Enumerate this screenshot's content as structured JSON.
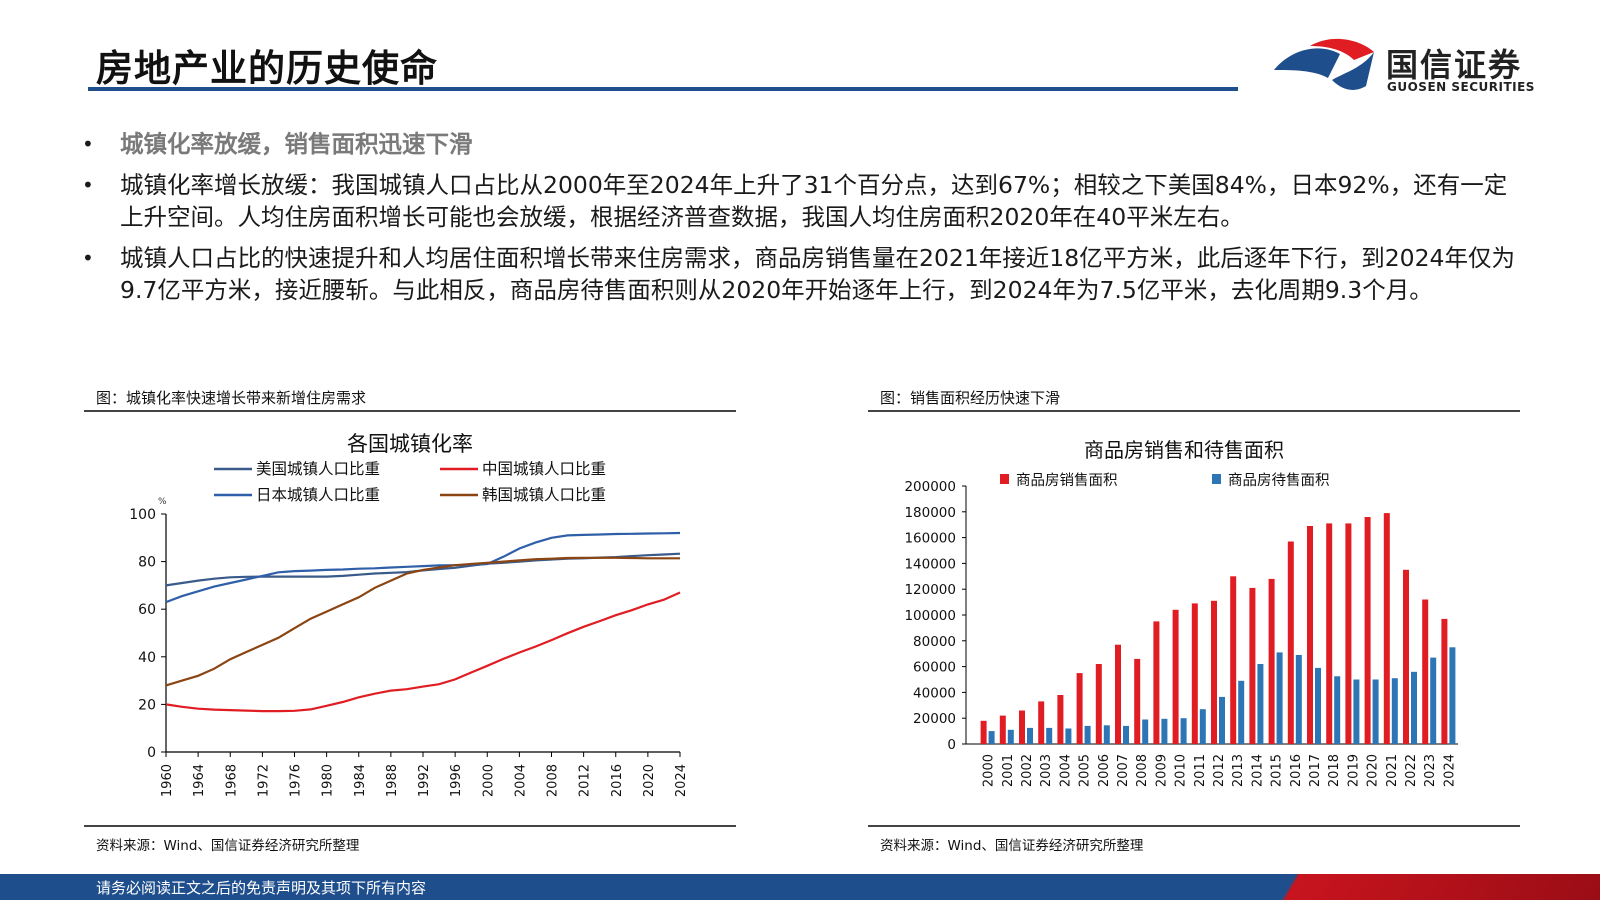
{
  "slide": {
    "title": "房地产业的历史使命",
    "brand_cn": "国信证券",
    "brand_en": "GUOSEN SECURITIES",
    "footer": "请务必阅读正文之后的免责声明及其项下所有内容",
    "colors": {
      "navy": "#1f4e8c",
      "red": "#c8141e"
    }
  },
  "bullets": [
    "城镇化率放缓，销售面积迅速下滑",
    "城镇化率增长放缓：我国城镇人口占比从2000年至2024年上升了31个百分点，达到67%；相较之下美国84%，日本92%，还有一定上升空间。人均住房面积增长可能也会放缓，根据经济普查数据，我国人均住房面积2020年在40平米左右。",
    "城镇人口占比的快速提升和人均居住面积增长带来住房需求，商品房销售量在2021年接近18亿平方米，此后逐年下行，到2024年仅为9.7亿平方米，接近腰斩。与此相反，商品房待售面积则从2020年开始逐年上行，到2024年为7.5亿平米，去化周期9.3个月。"
  ],
  "left_figure": {
    "caption": "图：城镇化率快速增长带来新增住房需求",
    "source": "资料来源：Wind、国信证券经济研究所整理"
  },
  "right_figure": {
    "caption": "图：销售面积经历快速下滑",
    "source": "资料来源：Wind、国信证券经济研究所整理"
  },
  "chart_data": [
    {
      "type": "line",
      "title": "各国城镇化率",
      "unit_label": "%",
      "ylim": [
        0,
        100
      ],
      "yticks": [
        0,
        20,
        40,
        60,
        80,
        100
      ],
      "x": [
        1960,
        1962,
        1964,
        1966,
        1968,
        1970,
        1972,
        1974,
        1976,
        1978,
        1980,
        1982,
        1984,
        1986,
        1988,
        1990,
        1992,
        1994,
        1996,
        1998,
        2000,
        2002,
        2004,
        2006,
        2008,
        2010,
        2012,
        2014,
        2016,
        2018,
        2020,
        2022,
        2024
      ],
      "xticks": [
        1960,
        1964,
        1968,
        1972,
        1976,
        1980,
        1984,
        1988,
        1992,
        1996,
        2000,
        2004,
        2008,
        2012,
        2016,
        2020,
        2024
      ],
      "legend_position": "top",
      "grid": false,
      "series": [
        {
          "name": "美国城镇人口比重",
          "color": "#3a5a8a",
          "values": [
            70,
            71,
            72,
            72.8,
            73.4,
            73.6,
            73.7,
            73.7,
            73.7,
            73.7,
            73.7,
            74.0,
            74.5,
            75.0,
            75.3,
            75.6,
            76.3,
            76.9,
            77.4,
            78.3,
            79.1,
            79.5,
            80.0,
            80.5,
            80.9,
            81.2,
            81.4,
            81.7,
            81.9,
            82.3,
            82.7,
            83.0,
            83.3
          ]
        },
        {
          "name": "中国城镇人口比重",
          "color": "#e11d24",
          "values": [
            20,
            19,
            18.2,
            17.8,
            17.6,
            17.4,
            17.2,
            17.2,
            17.3,
            17.9,
            19.4,
            21.0,
            23.0,
            24.5,
            25.8,
            26.4,
            27.5,
            28.5,
            30.5,
            33.4,
            36.2,
            39.1,
            41.8,
            44.3,
            47.0,
            49.9,
            52.6,
            55.0,
            57.5,
            59.6,
            62.0,
            64.0,
            67.0
          ]
        },
        {
          "name": "日本城镇人口比重",
          "color": "#2f5fa8",
          "values": [
            63,
            65.5,
            67.5,
            69.5,
            71,
            72.5,
            74,
            75.5,
            76,
            76.2,
            76.5,
            76.7,
            77,
            77.2,
            77.5,
            77.8,
            78.1,
            78.4,
            78.5,
            78.6,
            79,
            82,
            85.5,
            88,
            90,
            91,
            91.2,
            91.4,
            91.6,
            91.7,
            91.8,
            91.9,
            92
          ]
        },
        {
          "name": "韩国城镇人口比重",
          "color": "#8b4513",
          "values": [
            28,
            30,
            32,
            35,
            39,
            42,
            45,
            48,
            52,
            56,
            59,
            62,
            65,
            69,
            72,
            75,
            76.5,
            77.5,
            78.5,
            79,
            79.5,
            80,
            80.5,
            81,
            81.2,
            81.5,
            81.6,
            81.6,
            81.6,
            81.5,
            81.4,
            81.4,
            81.4
          ]
        }
      ]
    },
    {
      "type": "bar",
      "title": "商品房销售和待售面积",
      "categories": [
        "2000",
        "2001",
        "2002",
        "2003",
        "2004",
        "2005",
        "2006",
        "2007",
        "2008",
        "2009",
        "2010",
        "2011",
        "2012",
        "2013",
        "2014",
        "2015",
        "2016",
        "2017",
        "2018",
        "2019",
        "2020",
        "2021",
        "2022",
        "2023",
        "2024"
      ],
      "ylim": [
        0,
        200000
      ],
      "yticks": [
        0,
        20000,
        40000,
        60000,
        80000,
        100000,
        120000,
        140000,
        160000,
        180000,
        200000
      ],
      "legend_position": "top",
      "grid": false,
      "series": [
        {
          "name": "商品房销售面积",
          "color": "#e11d24",
          "values": [
            18000,
            22000,
            26000,
            33000,
            38000,
            55000,
            62000,
            77000,
            66000,
            95000,
            104000,
            109000,
            111000,
            130000,
            121000,
            128000,
            157000,
            169000,
            171000,
            171000,
            176000,
            179000,
            135000,
            112000,
            97000
          ]
        },
        {
          "name": "商品房待售面积",
          "color": "#2e75b6",
          "values": [
            10000,
            11000,
            12500,
            12500,
            12000,
            14000,
            14500,
            14000,
            19000,
            19500,
            20000,
            27000,
            36500,
            49000,
            62000,
            71000,
            69000,
            59000,
            52500,
            50000,
            50000,
            51000,
            56000,
            67000,
            75000
          ]
        }
      ]
    }
  ]
}
